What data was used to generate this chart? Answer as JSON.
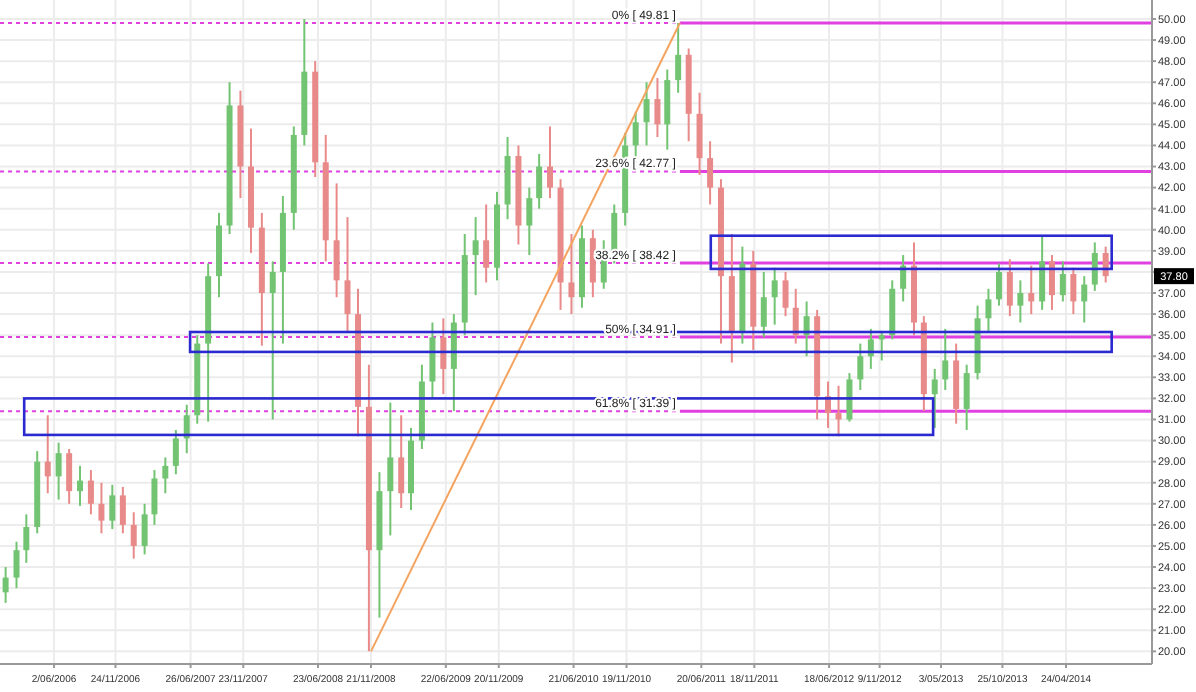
{
  "chart_data": {
    "type": "candlestick",
    "x": [
      "2006-01-15",
      "2006-02-15",
      "2006-03-15",
      "2006-04-15",
      "2006-05-15",
      "2006-06-15",
      "2006-07-15",
      "2006-08-15",
      "2006-09-15",
      "2006-10-15",
      "2006-11-15",
      "2006-12-15",
      "2007-01-15",
      "2007-02-15",
      "2007-03-15",
      "2007-04-15",
      "2007-05-15",
      "2007-06-15",
      "2007-07-15",
      "2007-08-15",
      "2007-09-15",
      "2007-10-15",
      "2007-11-15",
      "2007-12-15",
      "2008-01-15",
      "2008-02-15",
      "2008-03-15",
      "2008-04-15",
      "2008-05-15",
      "2008-06-15",
      "2008-07-15",
      "2008-08-15",
      "2008-09-15",
      "2008-10-15",
      "2008-11-15",
      "2008-12-15",
      "2009-01-15",
      "2009-02-15",
      "2009-03-15",
      "2009-04-15",
      "2009-05-15",
      "2009-06-15",
      "2009-07-15",
      "2009-08-15",
      "2009-09-15",
      "2009-10-15",
      "2009-11-15",
      "2009-12-15",
      "2010-01-15",
      "2010-02-15",
      "2010-03-15",
      "2010-04-15",
      "2010-05-15",
      "2010-06-15",
      "2010-07-15",
      "2010-08-15",
      "2010-09-15",
      "2010-10-15",
      "2010-11-15",
      "2010-12-15",
      "2011-01-15",
      "2011-02-15",
      "2011-03-15",
      "2011-04-15",
      "2011-05-15",
      "2011-06-15",
      "2011-07-15",
      "2011-08-15",
      "2011-09-15",
      "2011-10-15",
      "2011-11-15",
      "2011-12-15",
      "2012-01-15",
      "2012-02-15",
      "2012-03-15",
      "2012-04-15",
      "2012-05-15",
      "2012-06-15",
      "2012-07-15",
      "2012-08-15",
      "2012-09-15",
      "2012-10-15",
      "2012-11-15",
      "2012-12-15",
      "2013-01-15",
      "2013-02-15",
      "2013-03-15",
      "2013-04-15",
      "2013-05-15",
      "2013-06-15",
      "2013-07-15",
      "2013-08-15",
      "2013-09-15",
      "2013-10-15",
      "2013-11-15",
      "2013-12-15",
      "2014-01-15",
      "2014-02-15",
      "2014-03-15",
      "2014-04-15",
      "2014-05-15",
      "2014-06-15",
      "2014-07-15",
      "2014-08-15"
    ],
    "ohlc": [
      [
        22.8,
        24.0,
        22.3,
        23.5
      ],
      [
        23.5,
        25.2,
        23.0,
        24.8
      ],
      [
        24.8,
        26.5,
        24.2,
        25.9
      ],
      [
        25.9,
        29.5,
        25.6,
        29.0
      ],
      [
        29.0,
        31.2,
        27.5,
        28.3
      ],
      [
        28.3,
        29.9,
        27.2,
        29.4
      ],
      [
        29.4,
        29.6,
        27.0,
        27.6
      ],
      [
        27.6,
        28.8,
        26.9,
        28.1
      ],
      [
        28.1,
        28.6,
        26.5,
        27.0
      ],
      [
        27.0,
        28.0,
        25.6,
        26.2
      ],
      [
        26.2,
        27.9,
        25.8,
        27.4
      ],
      [
        27.4,
        27.8,
        25.6,
        26.0
      ],
      [
        26.0,
        26.6,
        24.4,
        25.0
      ],
      [
        25.0,
        27.0,
        24.6,
        26.5
      ],
      [
        26.5,
        28.6,
        26.0,
        28.2
      ],
      [
        28.2,
        29.2,
        27.5,
        28.8
      ],
      [
        28.8,
        30.5,
        28.4,
        30.1
      ],
      [
        30.1,
        31.7,
        29.4,
        31.2
      ],
      [
        31.2,
        35.0,
        30.8,
        34.6
      ],
      [
        34.6,
        38.4,
        30.9,
        37.8
      ],
      [
        37.8,
        40.8,
        36.8,
        40.2
      ],
      [
        40.2,
        47.0,
        39.8,
        45.9
      ],
      [
        45.9,
        46.6,
        41.5,
        43.0
      ],
      [
        43.0,
        44.8,
        38.9,
        40.1
      ],
      [
        40.1,
        40.8,
        34.5,
        37.0
      ],
      [
        37.0,
        38.5,
        31.0,
        38.0
      ],
      [
        38.0,
        41.6,
        34.6,
        40.8
      ],
      [
        40.8,
        44.9,
        40.0,
        44.5
      ],
      [
        44.5,
        50.0,
        44.0,
        47.5
      ],
      [
        47.5,
        48.0,
        42.5,
        43.2
      ],
      [
        43.2,
        44.5,
        38.5,
        39.5
      ],
      [
        39.5,
        42.2,
        36.8,
        37.6
      ],
      [
        37.6,
        40.6,
        35.2,
        36.0
      ],
      [
        36.0,
        37.2,
        30.2,
        31.6
      ],
      [
        31.6,
        33.6,
        20.0,
        24.8
      ],
      [
        24.8,
        28.5,
        21.6,
        27.6
      ],
      [
        27.6,
        31.8,
        25.5,
        29.2
      ],
      [
        29.2,
        31.2,
        26.8,
        27.5
      ],
      [
        27.5,
        30.6,
        26.7,
        30.0
      ],
      [
        30.0,
        33.6,
        29.6,
        32.8
      ],
      [
        32.8,
        35.6,
        32.0,
        34.9
      ],
      [
        34.9,
        35.8,
        32.2,
        33.4
      ],
      [
        33.4,
        36.0,
        31.4,
        35.6
      ],
      [
        35.6,
        39.8,
        35.0,
        38.8
      ],
      [
        38.8,
        40.6,
        36.9,
        39.5
      ],
      [
        39.5,
        41.2,
        37.5,
        38.2
      ],
      [
        38.2,
        41.8,
        37.6,
        41.2
      ],
      [
        41.2,
        44.4,
        40.5,
        43.5
      ],
      [
        43.5,
        44.0,
        39.3,
        40.2
      ],
      [
        40.2,
        42.0,
        38.8,
        41.5
      ],
      [
        41.5,
        43.6,
        41.0,
        43.0
      ],
      [
        43.0,
        44.9,
        41.5,
        42.0
      ],
      [
        42.0,
        42.4,
        36.2,
        37.5
      ],
      [
        37.5,
        39.8,
        36.0,
        36.8
      ],
      [
        36.8,
        40.2,
        36.3,
        39.6
      ],
      [
        39.6,
        40.0,
        36.8,
        37.5
      ],
      [
        37.5,
        39.5,
        37.2,
        39.0
      ],
      [
        39.0,
        41.2,
        38.4,
        40.8
      ],
      [
        40.8,
        44.6,
        40.2,
        44.0
      ],
      [
        44.0,
        45.6,
        43.2,
        45.1
      ],
      [
        45.1,
        47.0,
        44.0,
        46.2
      ],
      [
        46.2,
        47.2,
        44.4,
        45.0
      ],
      [
        45.0,
        47.6,
        43.8,
        47.1
      ],
      [
        47.1,
        49.81,
        46.5,
        48.3
      ],
      [
        48.3,
        48.6,
        44.2,
        45.5
      ],
      [
        45.5,
        46.5,
        42.6,
        43.4
      ],
      [
        43.4,
        44.2,
        41.2,
        42.0
      ],
      [
        42.0,
        42.4,
        34.6,
        37.8
      ],
      [
        37.8,
        39.8,
        33.7,
        35.2
      ],
      [
        35.2,
        39.2,
        34.6,
        38.4
      ],
      [
        38.4,
        39.0,
        34.3,
        35.4
      ],
      [
        35.4,
        38.0,
        34.9,
        36.8
      ],
      [
        36.8,
        38.2,
        35.5,
        37.6
      ],
      [
        37.6,
        38.0,
        35.9,
        36.3
      ],
      [
        36.3,
        37.2,
        34.6,
        35.0
      ],
      [
        35.0,
        36.6,
        34.0,
        35.9
      ],
      [
        35.9,
        36.2,
        31.0,
        32.1
      ],
      [
        32.1,
        32.8,
        30.6,
        31.3
      ],
      [
        31.3,
        32.6,
        30.2,
        31.0
      ],
      [
        31.0,
        33.2,
        30.9,
        32.9
      ],
      [
        32.9,
        34.6,
        32.4,
        34.0
      ],
      [
        34.0,
        35.3,
        33.4,
        34.8
      ],
      [
        34.8,
        35.2,
        33.8,
        35.0
      ],
      [
        35.0,
        37.6,
        34.8,
        37.2
      ],
      [
        37.2,
        38.8,
        36.6,
        38.3
      ],
      [
        38.3,
        39.4,
        35.0,
        35.6
      ],
      [
        35.6,
        35.9,
        31.4,
        32.2
      ],
      [
        32.2,
        33.4,
        30.6,
        32.9
      ],
      [
        32.9,
        35.3,
        32.4,
        33.8
      ],
      [
        33.8,
        34.6,
        30.8,
        31.5
      ],
      [
        31.5,
        33.6,
        30.5,
        33.2
      ],
      [
        33.2,
        36.4,
        32.9,
        35.8
      ],
      [
        35.8,
        37.2,
        35.2,
        36.7
      ],
      [
        36.7,
        38.4,
        36.4,
        38.0
      ],
      [
        38.0,
        38.6,
        35.9,
        36.4
      ],
      [
        36.4,
        37.6,
        35.6,
        37.0
      ],
      [
        37.0,
        38.3,
        36.0,
        36.6
      ],
      [
        36.6,
        39.7,
        36.2,
        38.5
      ],
      [
        38.5,
        38.8,
        36.2,
        36.9
      ],
      [
        36.9,
        38.5,
        36.6,
        37.9
      ],
      [
        37.9,
        38.2,
        36.0,
        36.6
      ],
      [
        36.6,
        37.8,
        35.6,
        37.4
      ],
      [
        37.4,
        39.4,
        37.1,
        38.9
      ],
      [
        38.9,
        39.2,
        37.5,
        37.8
      ]
    ],
    "colors": [
      "#72c472",
      "#72c472",
      "#72c472",
      "#72c472",
      "#e98a8a",
      "#72c472",
      "#e98a8a",
      "#72c472",
      "#e98a8a",
      "#e98a8a",
      "#72c472",
      "#e98a8a",
      "#e98a8a",
      "#72c472",
      "#72c472",
      "#72c472",
      "#72c472",
      "#72c472",
      "#72c472",
      "#72c472",
      "#72c472",
      "#72c472",
      "#e98a8a",
      "#e98a8a",
      "#e98a8a",
      "#72c472",
      "#72c472",
      "#72c472",
      "#72c472",
      "#e98a8a",
      "#e98a8a",
      "#e98a8a",
      "#e98a8a",
      "#e98a8a",
      "#e98a8a",
      "#72c472",
      "#72c472",
      "#e98a8a",
      "#72c472",
      "#72c472",
      "#72c472",
      "#e98a8a",
      "#72c472",
      "#72c472",
      "#72c472",
      "#e98a8a",
      "#72c472",
      "#72c472",
      "#e98a8a",
      "#72c472",
      "#72c472",
      "#e98a8a",
      "#e98a8a",
      "#e98a8a",
      "#72c472",
      "#e98a8a",
      "#72c472",
      "#72c472",
      "#72c472",
      "#72c472",
      "#72c472",
      "#e98a8a",
      "#72c472",
      "#72c472",
      "#e98a8a",
      "#e98a8a",
      "#e98a8a",
      "#e98a8a",
      "#e98a8a",
      "#72c472",
      "#e98a8a",
      "#72c472",
      "#72c472",
      "#e98a8a",
      "#e98a8a",
      "#72c472",
      "#e98a8a",
      "#e98a8a",
      "#e98a8a",
      "#72c472",
      "#72c472",
      "#72c472",
      "#72c472",
      "#72c472",
      "#72c472",
      "#e98a8a",
      "#e98a8a",
      "#72c472",
      "#72c472",
      "#e98a8a",
      "#72c472",
      "#72c472",
      "#72c472",
      "#72c472",
      "#e98a8a",
      "#72c472",
      "#e98a8a",
      "#72c472",
      "#e98a8a",
      "#72c472",
      "#e98a8a",
      "#72c472",
      "#72c472",
      "#e98a8a"
    ],
    "series": [
      {
        "type": "line",
        "x": [
          "2008-11-21",
          "2011-04-20"
        ],
        "values": [
          20.0,
          49.81
        ],
        "color": "#f4a460"
      }
    ],
    "ref_lines": [
      {
        "axis": "y",
        "value": 49.81,
        "label": "0%  [ 49.81 ]",
        "color": "#e040e0",
        "line_style": "dotted"
      },
      {
        "axis": "y",
        "value": 42.77,
        "label": "23.6%  [ 42.77 ]",
        "color": "#e040e0",
        "line_style": "dotted"
      },
      {
        "axis": "y",
        "value": 38.42,
        "label": "38.2%  [ 38.42 ]",
        "color": "#e040e0",
        "line_style": "dotted"
      },
      {
        "axis": "y",
        "value": 34.91,
        "label": "50%  [ 34.91 ]",
        "color": "#e040e0",
        "line_style": "dotted"
      },
      {
        "axis": "y",
        "value": 31.39,
        "label": "61.8%  [ 31.39 ]",
        "color": "#e040e0",
        "line_style": "dotted"
      }
    ],
    "annotations": [
      "37.80"
    ],
    "xlim": [
      "2005-12-30",
      "2014-12-25"
    ],
    "xticks": [
      {
        "value": "2006-06-02",
        "label": "2/06/2006"
      },
      {
        "value": "2006-11-24",
        "label": "24/11/2006"
      },
      {
        "value": "2007-06-26",
        "label": "26/06/2007"
      },
      {
        "value": "2007-11-23",
        "label": "23/11/2007"
      },
      {
        "value": "2008-06-23",
        "label": "23/06/2008"
      },
      {
        "value": "2008-11-21",
        "label": "21/11/2008"
      },
      {
        "value": "2009-06-22",
        "label": "22/06/2009"
      },
      {
        "value": "2009-11-20",
        "label": "20/11/2009"
      },
      {
        "value": "2010-06-21",
        "label": "21/06/2010"
      },
      {
        "value": "2010-11-19",
        "label": "19/11/2010"
      },
      {
        "value": "2011-06-20",
        "label": "20/06/2011"
      },
      {
        "value": "2011-11-18",
        "label": "18/11/2011"
      },
      {
        "value": "2012-06-18",
        "label": "18/06/2012"
      },
      {
        "value": "2012-11-09",
        "label": "9/11/2012"
      },
      {
        "value": "2013-05-03",
        "label": "3/05/2013"
      },
      {
        "value": "2013-10-25",
        "label": "25/10/2013"
      },
      {
        "value": "2014-04-24",
        "label": "24/04/2014"
      }
    ],
    "ylim": [
      19.4,
      50.9
    ],
    "yticks": [
      {
        "value": 20,
        "label": "20.00"
      },
      {
        "value": 21,
        "label": "21.00"
      },
      {
        "value": 22,
        "label": "22.00"
      },
      {
        "value": 23,
        "label": "23.00"
      },
      {
        "value": 24,
        "label": "24.00"
      },
      {
        "value": 25,
        "label": "25.00"
      },
      {
        "value": 26,
        "label": "26.00"
      },
      {
        "value": 27,
        "label": "27.00"
      },
      {
        "value": 28,
        "label": "28.00"
      },
      {
        "value": 29,
        "label": "29.00"
      },
      {
        "value": 30,
        "label": "30.00"
      },
      {
        "value": 31,
        "label": "31.00"
      },
      {
        "value": 32,
        "label": "32.00"
      },
      {
        "value": 33,
        "label": "33.00"
      },
      {
        "value": 34,
        "label": "34.00"
      },
      {
        "value": 35,
        "label": "35.00"
      },
      {
        "value": 36,
        "label": "36.00"
      },
      {
        "value": 37,
        "label": "37.00"
      },
      {
        "value": 38,
        "label": null
      },
      {
        "value": 39,
        "label": "39.00"
      },
      {
        "value": 40,
        "label": "40.00"
      },
      {
        "value": 41,
        "label": "41.00"
      },
      {
        "value": 42,
        "label": "42.00"
      },
      {
        "value": 43,
        "label": "43.00"
      },
      {
        "value": 44,
        "label": "44.00"
      },
      {
        "value": 45,
        "label": "45.00"
      },
      {
        "value": 46,
        "label": "46.00"
      },
      {
        "value": 47,
        "label": "47.00"
      },
      {
        "value": 48,
        "label": "48.00"
      },
      {
        "value": 49,
        "label": "49.00"
      },
      {
        "value": 50,
        "label": "50.00"
      }
    ],
    "grid": true
  }
}
